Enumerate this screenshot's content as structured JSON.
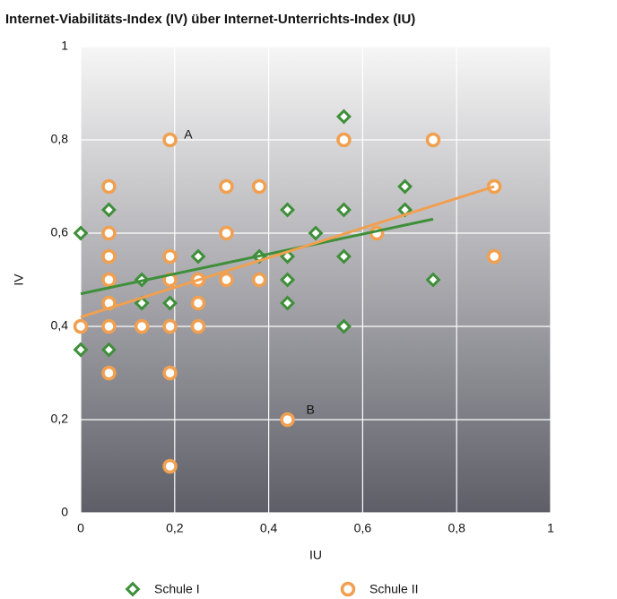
{
  "chart_data": {
    "type": "scatter",
    "title": "Internet-Viabilitäts-Index (IV) über Internet-Unterrichts-Index (IU)",
    "x_label": "IU",
    "y_label": "IV",
    "xlim": [
      0,
      1
    ],
    "ylim": [
      0,
      1
    ],
    "xticks": [
      0,
      {
        "value": 0.2,
        "label": "0,2"
      },
      {
        "value": 0.4,
        "label": "0,4"
      },
      {
        "value": 0.6,
        "label": "0,6"
      },
      {
        "value": 0.8,
        "label": "0,8"
      },
      1
    ],
    "yticks": [
      0,
      {
        "value": 0.2,
        "label": "0,2"
      },
      {
        "value": 0.4,
        "label": "0,4"
      },
      {
        "value": 0.6,
        "label": "0,6"
      },
      {
        "value": 0.8,
        "label": "0,8"
      },
      1
    ],
    "grid": true,
    "legend": "bottom",
    "series": [
      {
        "name": "Schule I",
        "color": "#3f8f3a",
        "marker": "diamond",
        "x": [
          0,
          0,
          0.06,
          0.06,
          0.13,
          0.13,
          0.19,
          0.25,
          0.38,
          0.44,
          0.44,
          0.44,
          0.44,
          0.5,
          0.56,
          0.56,
          0.56,
          0.56,
          0.69,
          0.69,
          0.75
        ],
        "values": [
          0.6,
          0.35,
          0.65,
          0.35,
          0.5,
          0.45,
          0.45,
          0.55,
          0.55,
          0.65,
          0.55,
          0.5,
          0.45,
          0.6,
          0.85,
          0.65,
          0.55,
          0.4,
          0.7,
          0.65,
          0.5
        ],
        "trend": {
          "x": [
            0,
            0.75
          ],
          "y": [
            0.47,
            0.63
          ]
        }
      },
      {
        "name": "Schule II",
        "color": "#f0a050",
        "marker": "circle",
        "x": [
          0,
          0.06,
          0.06,
          0.06,
          0.06,
          0.06,
          0.06,
          0.06,
          0.13,
          0.19,
          0.19,
          0.19,
          0.19,
          0.19,
          0.19,
          0.25,
          0.25,
          0.25,
          0.31,
          0.31,
          0.31,
          0.38,
          0.38,
          0.44,
          0.56,
          0.63,
          0.75,
          0.88,
          0.88
        ],
        "values": [
          0.4,
          0.7,
          0.6,
          0.55,
          0.5,
          0.45,
          0.4,
          0.3,
          0.4,
          0.8,
          0.55,
          0.5,
          0.4,
          0.3,
          0.1,
          0.5,
          0.45,
          0.4,
          0.7,
          0.6,
          0.5,
          0.7,
          0.5,
          0.2,
          0.8,
          0.6,
          0.8,
          0.7,
          0.55
        ],
        "trend": {
          "x": [
            0,
            0.88
          ],
          "y": [
            0.42,
            0.7
          ]
        }
      }
    ],
    "annotations": [
      {
        "text": "A",
        "x": 0.22,
        "y": 0.81
      },
      {
        "text": "B",
        "x": 0.48,
        "y": 0.22
      }
    ]
  }
}
